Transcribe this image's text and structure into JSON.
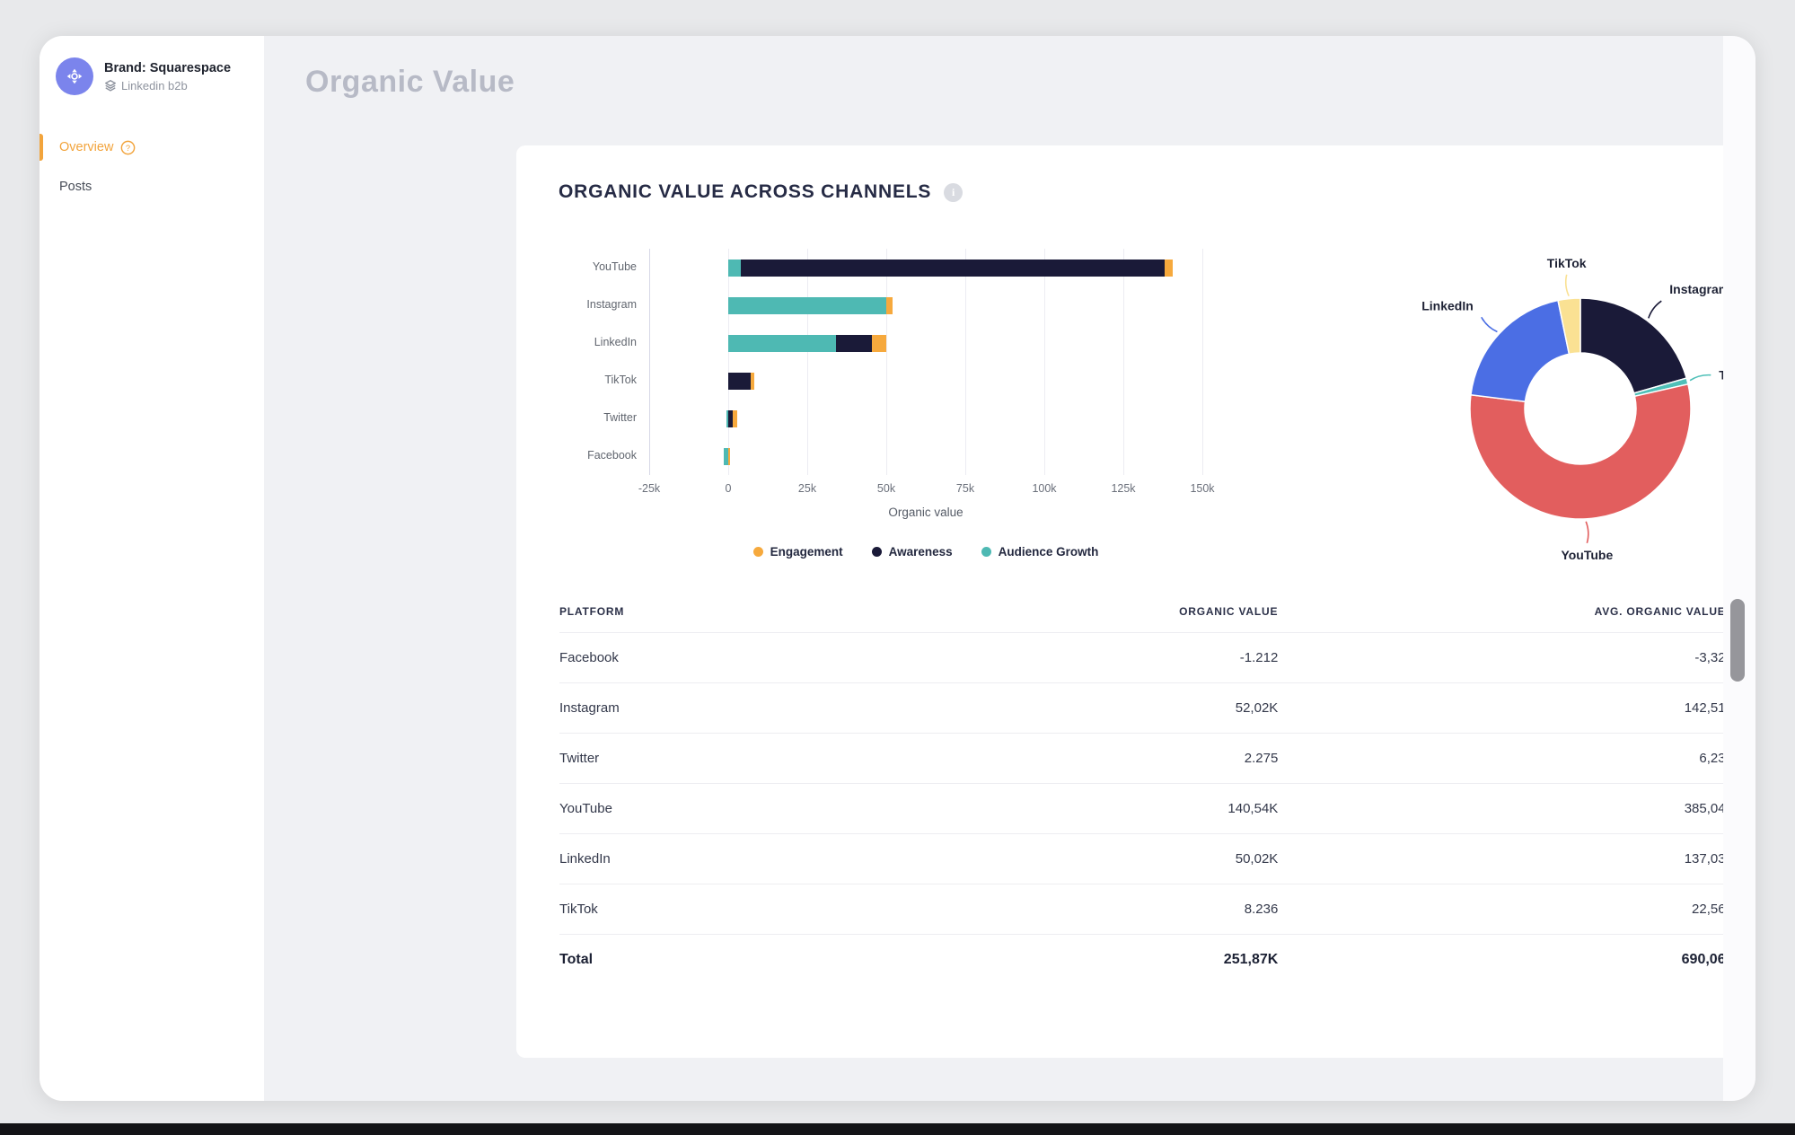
{
  "sidebar": {
    "brand_icon": "brand-avatar-icon",
    "brand_label": "Brand: Squarespace",
    "brand_sub_icon": "layers-icon",
    "brand_sub": "Linkedin b2b",
    "nav": [
      {
        "label": "Overview",
        "active": true,
        "help_icon": "question-circle-icon"
      },
      {
        "label": "Posts",
        "active": false
      }
    ]
  },
  "header": {
    "title": "Organic Value"
  },
  "card": {
    "title": "ORGANIC VALUE ACROSS CHANNELS",
    "info_icon": "info-icon"
  },
  "chart_data": [
    {
      "type": "bar",
      "orientation": "horizontal",
      "stacked": true,
      "categories": [
        "YouTube",
        "Instagram",
        "LinkedIn",
        "TikTok",
        "Twitter",
        "Facebook"
      ],
      "series": [
        {
          "name": "Engagement",
          "color": "#f6a93d",
          "values": [
            2500,
            2020,
            4520,
            1236,
            1500,
            200
          ]
        },
        {
          "name": "Awareness",
          "color": "#1a1a38",
          "values": [
            134040,
            0,
            11500,
            7000,
            1475,
            0
          ]
        },
        {
          "name": "Audience Growth",
          "color": "#4eb9b3",
          "values": [
            4000,
            50000,
            34000,
            0,
            -700,
            -1412
          ]
        }
      ],
      "xlabel": "Organic value",
      "xlim": [
        -25000,
        150000
      ],
      "x_ticks": [
        {
          "value": -25000,
          "label": "-25k"
        },
        {
          "value": 0,
          "label": "0"
        },
        {
          "value": 25000,
          "label": "25k"
        },
        {
          "value": 50000,
          "label": "50k"
        },
        {
          "value": 75000,
          "label": "75k"
        },
        {
          "value": 100000,
          "label": "100k"
        },
        {
          "value": 125000,
          "label": "125k"
        },
        {
          "value": 150000,
          "label": "150k"
        }
      ],
      "grid": "vertical",
      "legend_position": "bottom"
    },
    {
      "type": "pie",
      "donut": true,
      "direction": "clockwise",
      "start_angle_deg": 0,
      "slices": [
        {
          "label": "Instagram",
          "value": 52020,
          "color": "#1a1a38"
        },
        {
          "label": "Twitter",
          "value": 2275,
          "color": "#4fc0b8"
        },
        {
          "label": "YouTube",
          "value": 140540,
          "color": "#e25e5e"
        },
        {
          "label": "LinkedIn",
          "value": 50020,
          "color": "#4b6ee4"
        },
        {
          "label": "TikTok",
          "value": 8236,
          "color": "#fae193"
        }
      ]
    }
  ],
  "table": {
    "columns": [
      "PLATFORM",
      "ORGANIC VALUE",
      "AVG. ORGANIC VALUE"
    ],
    "rows": [
      [
        "Facebook",
        "-1.212",
        "-3,32"
      ],
      [
        "Instagram",
        "52,02K",
        "142,51"
      ],
      [
        "Twitter",
        "2.275",
        "6,23"
      ],
      [
        "YouTube",
        "140,54K",
        "385,04"
      ],
      [
        "LinkedIn",
        "50,02K",
        "137,03"
      ],
      [
        "TikTok",
        "8.236",
        "22,56"
      ]
    ],
    "total_row": [
      "Total",
      "251,87K",
      "690,06"
    ]
  },
  "colors": {
    "accent_orange": "#f2a43c",
    "navy": "#1a1a38",
    "teal": "#4eb9b3",
    "avatar": "#7b84ec",
    "content_bg": "#f0f1f4",
    "page_title": "#b7bac6"
  }
}
